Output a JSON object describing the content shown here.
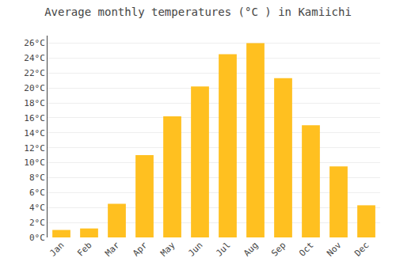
{
  "chart_data": {
    "type": "bar",
    "title": "Average monthly temperatures (°C ) in Kamiichi",
    "categories": [
      "Jan",
      "Feb",
      "Mar",
      "Apr",
      "May",
      "Jun",
      "Jul",
      "Aug",
      "Sep",
      "Oct",
      "Nov",
      "Dec"
    ],
    "values": [
      1.0,
      1.2,
      4.5,
      11.0,
      16.2,
      20.2,
      24.5,
      26.0,
      21.3,
      15.0,
      9.5,
      4.3
    ],
    "color": "#FFC020",
    "ylim": [
      0,
      27
    ],
    "yticks": [
      {
        "value": 0,
        "label": "0°C"
      },
      {
        "value": 2,
        "label": "2°C"
      },
      {
        "value": 4,
        "label": "4°C"
      },
      {
        "value": 6,
        "label": "6°C"
      },
      {
        "value": 8,
        "label": "8°C"
      },
      {
        "value": 10,
        "label": "10°C"
      },
      {
        "value": 12,
        "label": "12°C"
      },
      {
        "value": 14,
        "label": "14°C"
      },
      {
        "value": 16,
        "label": "16°C"
      },
      {
        "value": 18,
        "label": "18°C"
      },
      {
        "value": 20,
        "label": "20°C"
      },
      {
        "value": 22,
        "label": "22°C"
      },
      {
        "value": 24,
        "label": "24°C"
      },
      {
        "value": 26,
        "label": "26°C"
      }
    ],
    "grid": true
  }
}
